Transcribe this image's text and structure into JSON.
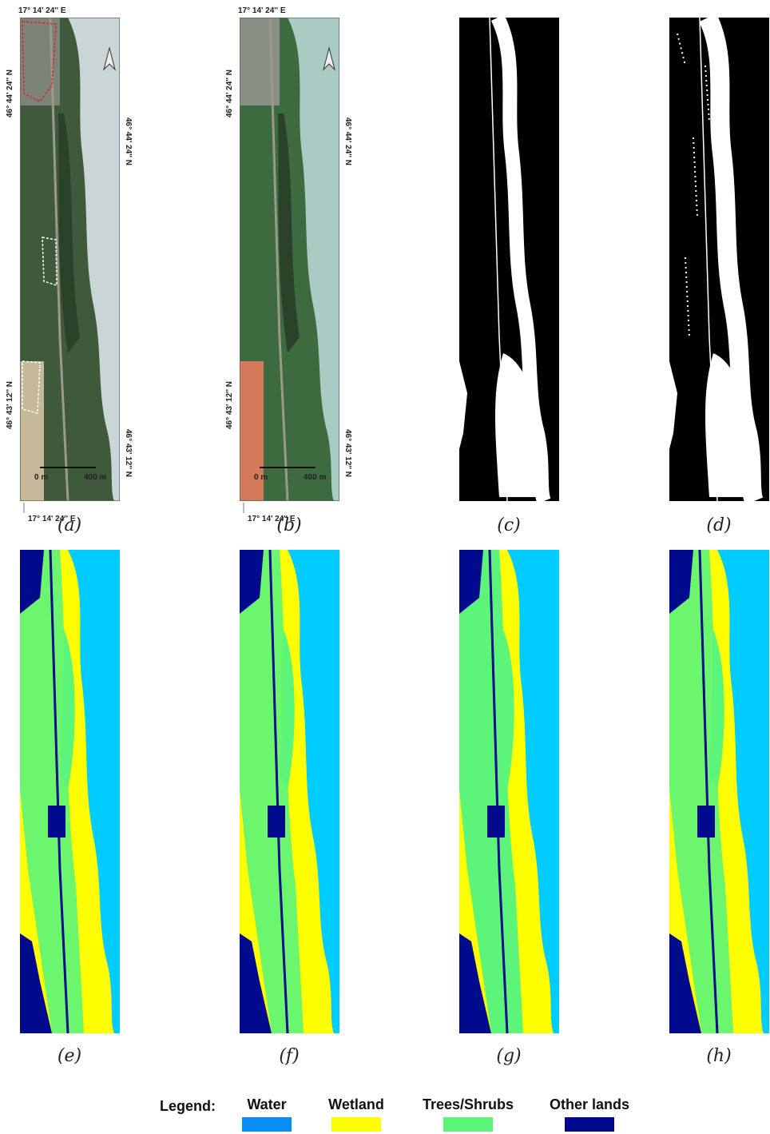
{
  "panels": [
    {
      "caption": "(a)",
      "top_label": "17° 14' 24'' E",
      "bottom_label": "17° 14' 24'' E",
      "left_labels": [
        "46° 44' 24'' N",
        "46° 43' 12'' N"
      ],
      "right_labels": [
        "46° 44' 24'' N",
        "46° 43' 12'' N"
      ],
      "scale": [
        "0 m",
        "400 m"
      ]
    },
    {
      "caption": "(b)",
      "top_label": "17° 14' 24'' E",
      "bottom_label": "17° 14' 24'' E",
      "left_labels": [
        "46° 44' 24'' N",
        "46° 43' 12'' N"
      ],
      "right_labels": [
        "46° 44' 24'' N",
        "46° 43' 12'' N"
      ],
      "scale": [
        "0 m",
        "400 m"
      ]
    },
    {
      "caption": "(c)"
    },
    {
      "caption": "(d)"
    },
    {
      "caption": "(e)"
    },
    {
      "caption": "(f)"
    },
    {
      "caption": "(g)"
    },
    {
      "caption": "(h)"
    }
  ],
  "legend": {
    "title": "Legend:",
    "items": [
      {
        "label": "Water",
        "color": "#0a8cf5"
      },
      {
        "label": "Wetland",
        "color": "#ffff00"
      },
      {
        "label": "Trees/Shrubs",
        "color": "#5cf57a"
      },
      {
        "label": "Other lands",
        "color": "#000a8c"
      }
    ]
  }
}
